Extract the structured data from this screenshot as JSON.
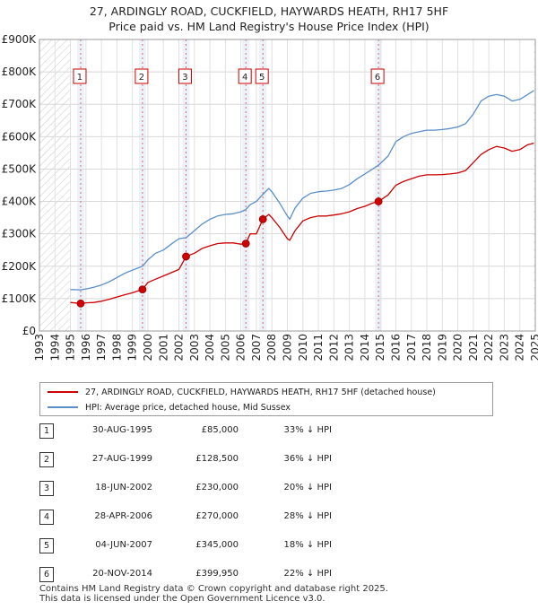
{
  "chart_data": {
    "type": "line",
    "title": "27, ARDINGLY ROAD, CUCKFIELD, HAYWARDS HEATH, RH17 5HF",
    "subtitle": "Price paid vs. HM Land Registry's House Price Index (HPI)",
    "xlabel": "",
    "ylabel": "",
    "xlim": [
      1993,
      2025
    ],
    "ylim": [
      0,
      900000
    ],
    "yticks": [
      {
        "value": 0,
        "label": "£0"
      },
      {
        "value": 100000,
        "label": "£100K"
      },
      {
        "value": 200000,
        "label": "£200K"
      },
      {
        "value": 300000,
        "label": "£300K"
      },
      {
        "value": 400000,
        "label": "£400K"
      },
      {
        "value": 500000,
        "label": "£500K"
      },
      {
        "value": 600000,
        "label": "£600K"
      },
      {
        "value": 700000,
        "label": "£700K"
      },
      {
        "value": 800000,
        "label": "£800K"
      },
      {
        "value": 900000,
        "label": "£900K"
      }
    ],
    "xticks": [
      "1993",
      "1994",
      "1995",
      "1996",
      "1997",
      "1998",
      "1999",
      "2000",
      "2001",
      "2002",
      "2003",
      "2004",
      "2005",
      "2006",
      "2007",
      "2008",
      "2009",
      "2010",
      "2011",
      "2012",
      "2013",
      "2014",
      "2015",
      "2016",
      "2017",
      "2018",
      "2019",
      "2020",
      "2021",
      "2022",
      "2023",
      "2024",
      "2025"
    ],
    "grid": true,
    "hatched_ranges": [
      [
        1993,
        1995.0
      ],
      [
        2024.9,
        2025
      ]
    ],
    "legend_position": "below",
    "series": [
      {
        "name": "27, ARDINGLY ROAD, CUCKFIELD, HAYWARDS HEATH, RH17 5HF (detached house)",
        "color": "#cc0000",
        "x": [
          1995.0,
          1995.66,
          1996.0,
          1996.5,
          1997.0,
          1997.5,
          1998.0,
          1998.5,
          1999.0,
          1999.65,
          2000.0,
          2000.5,
          2001.0,
          2001.5,
          2002.0,
          2002.46,
          2003.0,
          2003.5,
          2004.0,
          2004.5,
          2005.0,
          2005.5,
          2006.0,
          2006.32,
          2006.6,
          2007.0,
          2007.42,
          2007.8,
          2008.0,
          2008.5,
          2009.0,
          2009.15,
          2009.5,
          2010.0,
          2010.5,
          2011.0,
          2011.5,
          2012.0,
          2012.5,
          2013.0,
          2013.5,
          2014.0,
          2014.5,
          2014.88,
          2015.5,
          2016.0,
          2016.5,
          2017.0,
          2017.5,
          2018.0,
          2018.5,
          2019.0,
          2019.5,
          2020.0,
          2020.5,
          2021.0,
          2021.5,
          2022.0,
          2022.5,
          2023.0,
          2023.5,
          2024.0,
          2024.5,
          2024.9
        ],
        "values": [
          88000,
          85000,
          87000,
          88000,
          92000,
          98000,
          105000,
          112000,
          118000,
          128500,
          150000,
          160000,
          170000,
          180000,
          190000,
          230000,
          240000,
          255000,
          263000,
          270000,
          272000,
          272000,
          268000,
          270000,
          300000,
          300000,
          345000,
          360000,
          350000,
          320000,
          285000,
          280000,
          310000,
          340000,
          350000,
          355000,
          355000,
          358000,
          362000,
          368000,
          378000,
          385000,
          395000,
          399950,
          420000,
          450000,
          462000,
          470000,
          478000,
          482000,
          482000,
          483000,
          485000,
          488000,
          495000,
          520000,
          545000,
          560000,
          570000,
          565000,
          555000,
          560000,
          575000,
          580000
        ]
      },
      {
        "name": "HPI: Average price, detached house, Mid Sussex",
        "color": "#5b8ec9",
        "x": [
          1995.0,
          1995.66,
          1996.0,
          1996.5,
          1997.0,
          1997.5,
          1998.0,
          1998.5,
          1999.0,
          1999.65,
          2000.0,
          2000.5,
          2001.0,
          2001.5,
          2002.0,
          2002.46,
          2003.0,
          2003.5,
          2004.0,
          2004.5,
          2005.0,
          2005.5,
          2006.0,
          2006.32,
          2006.6,
          2007.0,
          2007.42,
          2007.8,
          2008.0,
          2008.5,
          2009.0,
          2009.15,
          2009.5,
          2010.0,
          2010.5,
          2011.0,
          2011.5,
          2012.0,
          2012.5,
          2013.0,
          2013.5,
          2014.0,
          2014.5,
          2014.88,
          2015.5,
          2016.0,
          2016.5,
          2017.0,
          2017.5,
          2018.0,
          2018.5,
          2019.0,
          2019.5,
          2020.0,
          2020.5,
          2021.0,
          2021.5,
          2022.0,
          2022.5,
          2023.0,
          2023.5,
          2024.0,
          2024.5,
          2024.9
        ],
        "values": [
          128000,
          127000,
          130000,
          135000,
          142000,
          152000,
          165000,
          178000,
          188000,
          200000,
          220000,
          240000,
          250000,
          268000,
          285000,
          288000,
          310000,
          330000,
          345000,
          355000,
          360000,
          362000,
          368000,
          375000,
          390000,
          400000,
          422000,
          440000,
          430000,
          395000,
          355000,
          345000,
          380000,
          410000,
          425000,
          430000,
          432000,
          435000,
          440000,
          452000,
          470000,
          485000,
          500000,
          512000,
          540000,
          585000,
          600000,
          610000,
          615000,
          620000,
          620000,
          622000,
          625000,
          630000,
          640000,
          670000,
          710000,
          725000,
          730000,
          725000,
          710000,
          715000,
          730000,
          742000
        ]
      }
    ],
    "sales": [
      {
        "n": "1",
        "x": 1995.66,
        "value": 85000
      },
      {
        "n": "2",
        "x": 1999.65,
        "value": 128500
      },
      {
        "n": "3",
        "x": 2002.46,
        "value": 230000
      },
      {
        "n": "4",
        "x": 2006.32,
        "value": 270000
      },
      {
        "n": "5",
        "x": 2007.42,
        "value": 345000
      },
      {
        "n": "6",
        "x": 2014.88,
        "value": 399950
      }
    ]
  },
  "legend": {
    "property_label": "27, ARDINGLY ROAD, CUCKFIELD, HAYWARDS HEATH, RH17 5HF (detached house)",
    "hpi_label": "HPI: Average price, detached house, Mid Sussex",
    "property_color": "#cc0000",
    "hpi_color": "#5b8ec9"
  },
  "transactions": [
    {
      "n": "1",
      "date": "30-AUG-1995",
      "price": "£85,000",
      "hpi": "33% ↓ HPI"
    },
    {
      "n": "2",
      "date": "27-AUG-1999",
      "price": "£128,500",
      "hpi": "36% ↓ HPI"
    },
    {
      "n": "3",
      "date": "18-JUN-2002",
      "price": "£230,000",
      "hpi": "20% ↓ HPI"
    },
    {
      "n": "4",
      "date": "28-APR-2006",
      "price": "£270,000",
      "hpi": "28% ↓ HPI"
    },
    {
      "n": "5",
      "date": "04-JUN-2007",
      "price": "£345,000",
      "hpi": "18% ↓ HPI"
    },
    {
      "n": "6",
      "date": "20-NOV-2014",
      "price": "£399,950",
      "hpi": "22% ↓ HPI"
    }
  ],
  "footer": {
    "line1": "Contains HM Land Registry data © Crown copyright and database right 2025.",
    "line2": "This data is licensed under the Open Government Licence v3.0."
  }
}
